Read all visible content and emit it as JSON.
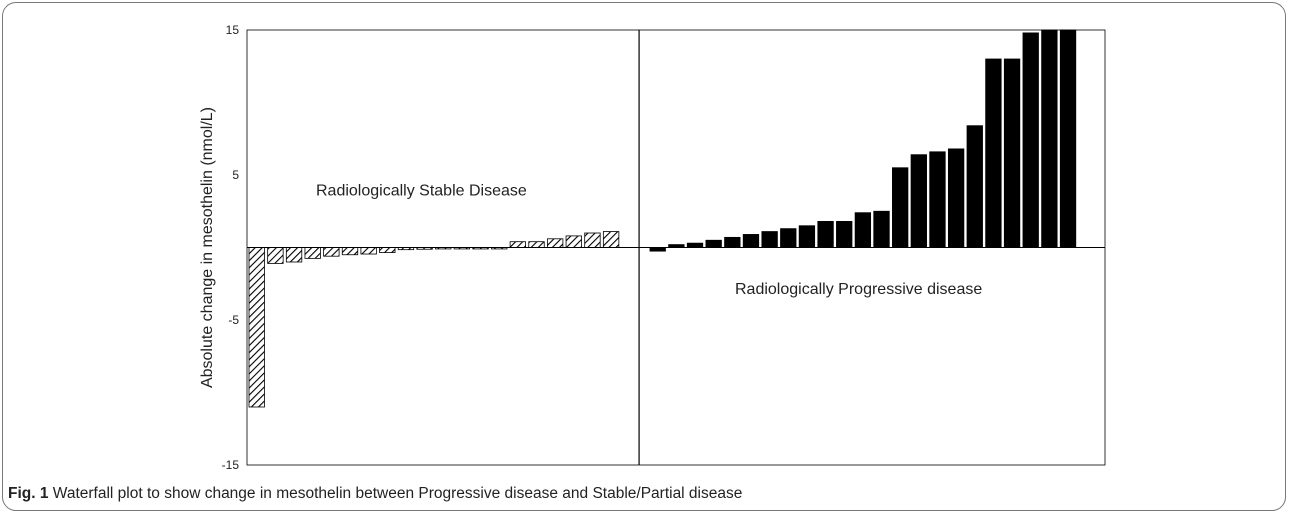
{
  "chart_data": {
    "type": "bar",
    "ylabel": "Absolute change in mesothelin (nmol/L)",
    "ylim": [
      -15,
      15
    ],
    "yticks": [
      15,
      5,
      -5,
      -15
    ],
    "annotations": {
      "stable_label": "Radiologically Stable Disease",
      "progressive_label": "Radiologically Progressive disease"
    },
    "series": [
      {
        "pattern": "hatched",
        "values": [
          -11,
          -1.1,
          -1.0,
          -0.75,
          -0.6,
          -0.5,
          -0.45,
          -0.35,
          -0.15,
          -0.12,
          -0.1,
          -0.1,
          -0.1,
          -0.1,
          0.4,
          0.4,
          0.6,
          0.8,
          1.0,
          1.1
        ]
      },
      {
        "pattern": "solid",
        "color": "#000000",
        "values": [
          -0.25,
          0.2,
          0.3,
          0.5,
          0.7,
          0.9,
          1.1,
          1.3,
          1.5,
          1.8,
          1.8,
          2.4,
          2.5,
          5.5,
          6.4,
          6.6,
          6.8,
          8.4,
          13,
          13,
          14.8,
          15,
          15
        ]
      }
    ]
  },
  "caption": {
    "fig_label": "Fig. 1",
    "text": " Waterfall plot to show change in mesothelin between Progressive disease and Stable/Partial disease"
  }
}
